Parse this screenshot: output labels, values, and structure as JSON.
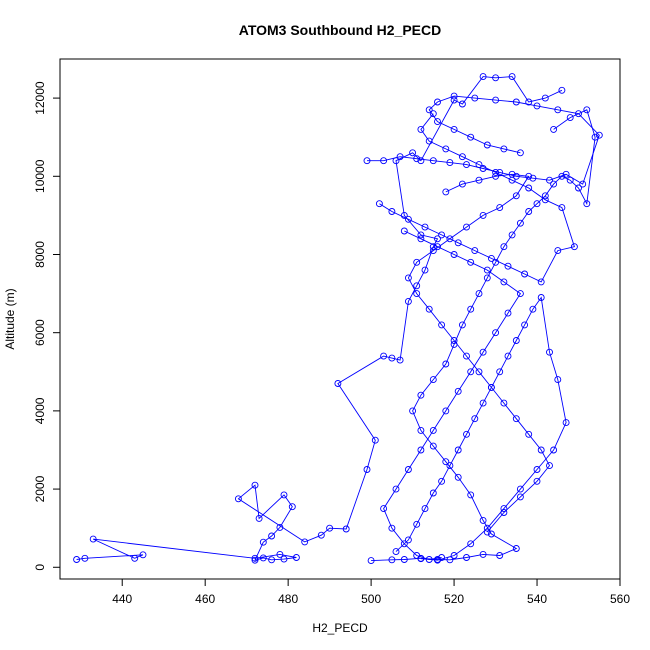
{
  "chart_data": {
    "type": "scatter",
    "title": "ATOM3 Southbound H2_PECD",
    "xlabel": "H2_PECD",
    "ylabel": "Altitude (m)",
    "xlim": [
      425,
      560
    ],
    "ylim": [
      -300,
      13000
    ],
    "xticks": [
      440,
      460,
      480,
      500,
      520,
      540,
      560
    ],
    "yticks": [
      0,
      2000,
      4000,
      6000,
      8000,
      10000,
      12000
    ],
    "grid": false,
    "legend": "none",
    "color": "#0000ff",
    "marker": "open-circle",
    "connected": true,
    "series": [
      {
        "points": [
          [
            429,
            200
          ],
          [
            431,
            230
          ],
          [
            445,
            320
          ],
          [
            443,
            230
          ],
          [
            433,
            720
          ],
          [
            472,
            230
          ],
          [
            478,
            330
          ],
          [
            482,
            250
          ],
          [
            479,
            210
          ],
          [
            476,
            190
          ],
          [
            474,
            240
          ],
          [
            472,
            180
          ],
          [
            474,
            640
          ],
          [
            476,
            800
          ],
          [
            478,
            1020
          ],
          [
            481,
            1550
          ],
          [
            479,
            1850
          ],
          [
            473,
            1250
          ],
          [
            472,
            2100
          ],
          [
            468,
            1750
          ],
          [
            484,
            650
          ],
          [
            488,
            820
          ],
          [
            490,
            1000
          ],
          [
            494,
            980
          ],
          [
            499,
            2500
          ],
          [
            501,
            3250
          ],
          [
            492,
            4700
          ],
          [
            503,
            5400
          ],
          [
            505,
            5350
          ],
          [
            507,
            5300
          ],
          [
            509,
            6800
          ],
          [
            511,
            7200
          ],
          [
            513,
            7600
          ],
          [
            515,
            8200
          ],
          [
            516,
            8400
          ],
          [
            512,
            8500
          ],
          [
            508,
            9000
          ],
          [
            506,
            10400
          ],
          [
            510,
            10600
          ],
          [
            512,
            10400
          ],
          [
            520,
            11950
          ],
          [
            522,
            11850
          ],
          [
            527,
            12550
          ],
          [
            530,
            12520
          ],
          [
            534,
            12550
          ],
          [
            538,
            11900
          ],
          [
            542,
            12000
          ],
          [
            546,
            12200
          ]
        ]
      },
      {
        "points": [
          [
            500,
            170
          ],
          [
            505,
            190
          ],
          [
            508,
            200
          ],
          [
            512,
            230
          ],
          [
            516,
            200
          ],
          [
            519,
            190
          ],
          [
            523,
            250
          ],
          [
            527,
            330
          ],
          [
            531,
            300
          ],
          [
            535,
            480
          ],
          [
            529,
            850
          ],
          [
            527,
            1200
          ],
          [
            524,
            1850
          ],
          [
            521,
            2300
          ],
          [
            518,
            2700
          ],
          [
            515,
            3100
          ],
          [
            512,
            3500
          ],
          [
            510,
            4000
          ],
          [
            512,
            4400
          ],
          [
            515,
            4800
          ],
          [
            518,
            5200
          ],
          [
            520,
            5700
          ],
          [
            522,
            6200
          ],
          [
            524,
            6600
          ],
          [
            526,
            7000
          ],
          [
            528,
            7400
          ],
          [
            530,
            7800
          ],
          [
            532,
            8200
          ],
          [
            534,
            8500
          ],
          [
            536,
            8800
          ],
          [
            538,
            9100
          ],
          [
            540,
            9300
          ],
          [
            542,
            9500
          ],
          [
            544,
            9800
          ],
          [
            546,
            10000
          ],
          [
            548,
            9900
          ],
          [
            550,
            9700
          ],
          [
            552,
            9300
          ],
          [
            554,
            11000
          ],
          [
            552,
            11700
          ],
          [
            548,
            11500
          ],
          [
            544,
            11200
          ]
        ]
      },
      {
        "points": [
          [
            506,
            400
          ],
          [
            509,
            700
          ],
          [
            511,
            1100
          ],
          [
            513,
            1500
          ],
          [
            515,
            1900
          ],
          [
            517,
            2200
          ],
          [
            519,
            2600
          ],
          [
            521,
            3000
          ],
          [
            523,
            3400
          ],
          [
            525,
            3800
          ],
          [
            527,
            4200
          ],
          [
            529,
            4600
          ],
          [
            531,
            5000
          ],
          [
            533,
            5400
          ],
          [
            535,
            5800
          ],
          [
            537,
            6200
          ],
          [
            539,
            6600
          ],
          [
            541,
            6900
          ],
          [
            543,
            5500
          ],
          [
            545,
            4800
          ],
          [
            547,
            3700
          ],
          [
            544,
            3000
          ],
          [
            540,
            2500
          ],
          [
            536,
            2000
          ],
          [
            532,
            1500
          ],
          [
            528,
            1000
          ],
          [
            524,
            600
          ],
          [
            520,
            300
          ],
          [
            516,
            180
          ],
          [
            512,
            220
          ]
        ]
      },
      {
        "points": [
          [
            499,
            10400
          ],
          [
            503,
            10400
          ],
          [
            507,
            10500
          ],
          [
            511,
            10450
          ],
          [
            515,
            10400
          ],
          [
            519,
            10350
          ],
          [
            523,
            10300
          ],
          [
            527,
            10200
          ],
          [
            531,
            10100
          ],
          [
            535,
            10000
          ],
          [
            539,
            9950
          ],
          [
            543,
            9900
          ],
          [
            547,
            10050
          ],
          [
            551,
            9800
          ],
          [
            555,
            11050
          ],
          [
            550,
            11600
          ],
          [
            545,
            11700
          ],
          [
            540,
            11800
          ],
          [
            535,
            11900
          ],
          [
            530,
            11950
          ],
          [
            525,
            12000
          ],
          [
            520,
            12050
          ],
          [
            516,
            11900
          ],
          [
            514,
            11700
          ],
          [
            516,
            11400
          ],
          [
            520,
            11200
          ],
          [
            524,
            11000
          ],
          [
            528,
            10800
          ],
          [
            532,
            10700
          ],
          [
            536,
            10600
          ]
        ]
      },
      {
        "points": [
          [
            508,
            8600
          ],
          [
            512,
            8400
          ],
          [
            516,
            8200
          ],
          [
            520,
            8000
          ],
          [
            524,
            7800
          ],
          [
            528,
            7600
          ],
          [
            532,
            7300
          ],
          [
            536,
            7000
          ],
          [
            533,
            6500
          ],
          [
            530,
            6000
          ],
          [
            527,
            5500
          ],
          [
            524,
            5000
          ],
          [
            521,
            4500
          ],
          [
            518,
            4000
          ],
          [
            515,
            3500
          ],
          [
            512,
            3000
          ],
          [
            509,
            2500
          ],
          [
            506,
            2000
          ],
          [
            503,
            1500
          ],
          [
            505,
            1000
          ],
          [
            508,
            600
          ],
          [
            511,
            300
          ],
          [
            514,
            200
          ],
          [
            517,
            250
          ]
        ]
      },
      {
        "points": [
          [
            518,
            9600
          ],
          [
            522,
            9800
          ],
          [
            526,
            9900
          ],
          [
            530,
            10000
          ],
          [
            534,
            10050
          ],
          [
            538,
            10000
          ],
          [
            535,
            9500
          ],
          [
            531,
            9200
          ],
          [
            527,
            9000
          ],
          [
            523,
            8700
          ],
          [
            519,
            8400
          ],
          [
            515,
            8100
          ],
          [
            511,
            7800
          ],
          [
            509,
            7400
          ],
          [
            511,
            7000
          ],
          [
            514,
            6600
          ],
          [
            517,
            6200
          ],
          [
            520,
            5800
          ],
          [
            523,
            5400
          ],
          [
            526,
            5000
          ],
          [
            529,
            4600
          ],
          [
            532,
            4200
          ],
          [
            535,
            3800
          ],
          [
            538,
            3400
          ],
          [
            541,
            3000
          ],
          [
            543,
            2600
          ],
          [
            540,
            2200
          ],
          [
            536,
            1800
          ],
          [
            532,
            1400
          ],
          [
            528,
            900
          ]
        ]
      },
      {
        "points": [
          [
            502,
            9300
          ],
          [
            505,
            9100
          ],
          [
            509,
            8900
          ],
          [
            513,
            8700
          ],
          [
            517,
            8500
          ],
          [
            521,
            8300
          ],
          [
            525,
            8100
          ],
          [
            529,
            7900
          ],
          [
            533,
            7700
          ],
          [
            537,
            7500
          ],
          [
            541,
            7300
          ],
          [
            545,
            8100
          ],
          [
            549,
            8200
          ],
          [
            546,
            9200
          ],
          [
            542,
            9400
          ],
          [
            538,
            9700
          ],
          [
            534,
            9900
          ],
          [
            530,
            10100
          ],
          [
            526,
            10300
          ],
          [
            522,
            10500
          ],
          [
            518,
            10700
          ],
          [
            514,
            10900
          ],
          [
            512,
            11200
          ],
          [
            515,
            11600
          ]
        ]
      }
    ]
  }
}
